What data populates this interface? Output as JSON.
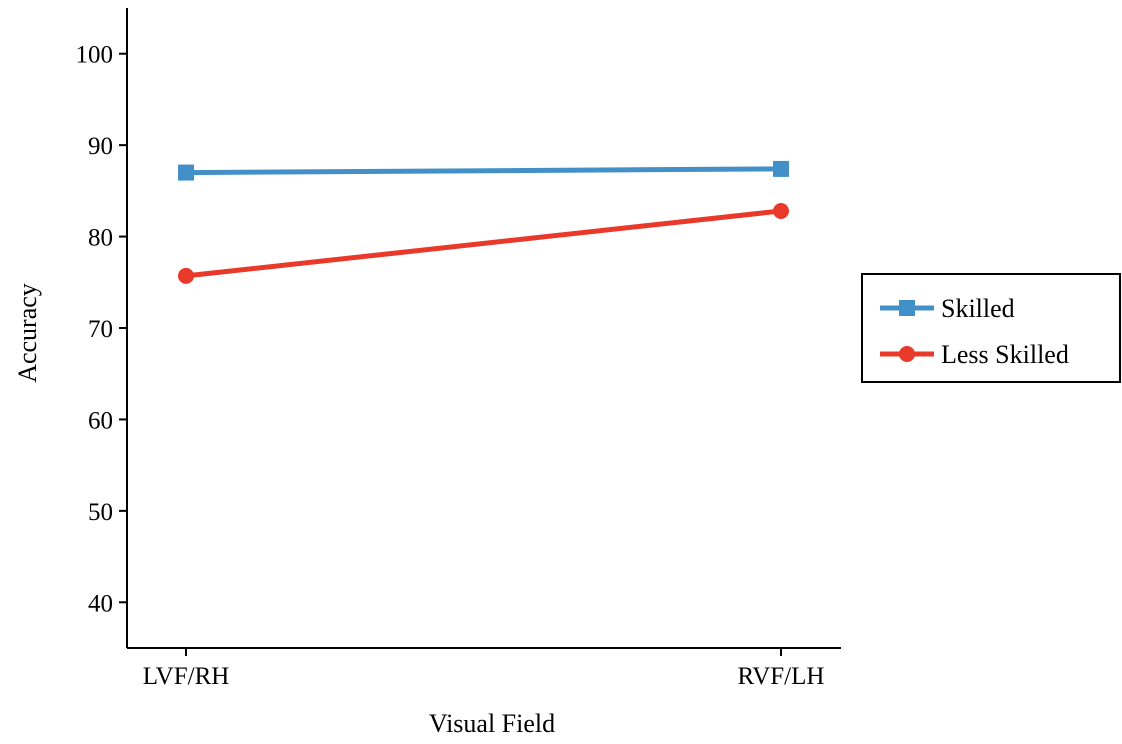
{
  "chart_data": {
    "type": "line",
    "title": "",
    "xlabel": "Visual Field",
    "ylabel": "Accuracy",
    "categories": [
      "LVF/RH",
      "RVF/LH"
    ],
    "ylim": [
      35,
      105
    ],
    "yticks": [
      40,
      50,
      60,
      70,
      80,
      90,
      100
    ],
    "grid": false,
    "legend_position": "right",
    "series": [
      {
        "name": "Skilled",
        "values": [
          87.0,
          87.4
        ],
        "color": "#4390c8",
        "marker": "square"
      },
      {
        "name": "Less Skilled",
        "values": [
          75.7,
          82.8
        ],
        "color": "#e8392a",
        "marker": "circle"
      }
    ]
  }
}
